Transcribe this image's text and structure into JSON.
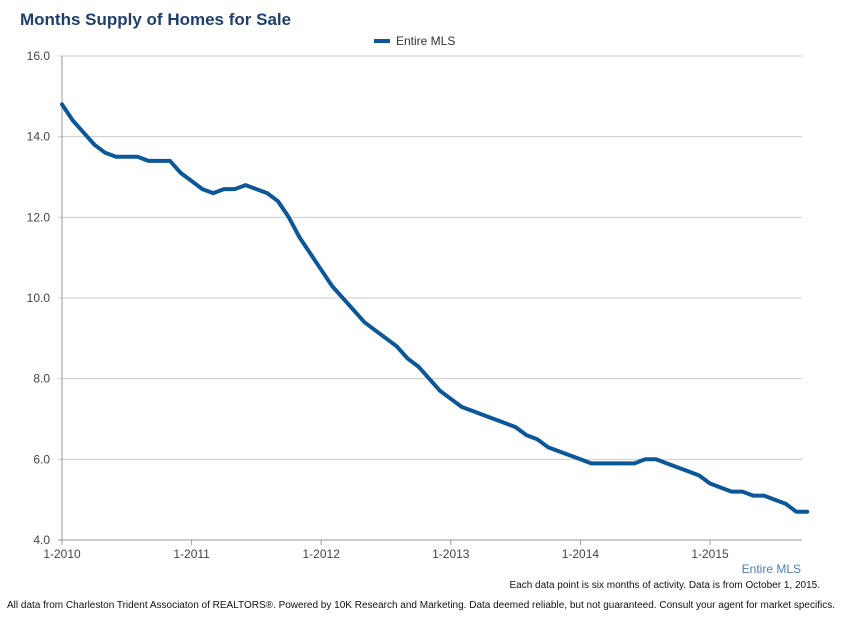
{
  "chart_data": {
    "type": "line",
    "title": "Months Supply of Homes for Sale",
    "xlabel": "",
    "ylabel": "",
    "ylim": [
      4.0,
      16.0
    ],
    "y_ticks": [
      "4.0",
      "6.0",
      "8.0",
      "10.0",
      "12.0",
      "14.0",
      "16.0"
    ],
    "x_ticks": [
      "1-2010",
      "1-2011",
      "1-2012",
      "1-2013",
      "1-2014",
      "1-2015"
    ],
    "xlim": [
      0,
      69
    ],
    "grid": true,
    "legend_position": "top-center",
    "series": [
      {
        "name": "Entire MLS",
        "color": "#0b5797",
        "x": [
          0,
          1,
          2,
          3,
          4,
          5,
          6,
          7,
          8,
          9,
          10,
          11,
          12,
          13,
          14,
          15,
          16,
          17,
          18,
          19,
          20,
          21,
          22,
          23,
          24,
          25,
          26,
          27,
          28,
          29,
          30,
          31,
          32,
          33,
          34,
          35,
          36,
          37,
          38,
          39,
          40,
          41,
          42,
          43,
          44,
          45,
          46,
          47,
          48,
          49,
          50,
          51,
          52,
          53,
          54,
          55,
          56,
          57,
          58,
          59,
          60,
          61,
          62,
          63,
          64,
          65,
          66,
          67,
          68,
          69
        ],
        "values": [
          14.8,
          14.4,
          14.1,
          13.8,
          13.6,
          13.5,
          13.5,
          13.5,
          13.4,
          13.4,
          13.4,
          13.1,
          12.9,
          12.7,
          12.6,
          12.7,
          12.7,
          12.8,
          12.7,
          12.6,
          12.4,
          12.0,
          11.5,
          11.1,
          10.7,
          10.3,
          10.0,
          9.7,
          9.4,
          9.2,
          9.0,
          8.8,
          8.5,
          8.3,
          8.0,
          7.7,
          7.5,
          7.3,
          7.2,
          7.1,
          7.0,
          6.9,
          6.8,
          6.6,
          6.5,
          6.3,
          6.2,
          6.1,
          6.0,
          5.9,
          5.9,
          5.9,
          5.9,
          5.9,
          6.0,
          6.0,
          5.9,
          5.8,
          5.7,
          5.6,
          5.4,
          5.3,
          5.2,
          5.2,
          5.1,
          5.1,
          5.0,
          4.9,
          4.7,
          4.7
        ]
      }
    ],
    "series_tag": "Entire MLS",
    "note": "Each data point is six months of activity. Data is from October 1, 2015.",
    "footer": "All data from Charleston Trident Associaton of REALTORS®. Powered by 10K Research and Marketing. Data deemed reliable, but not guaranteed. Consult your agent for market specifics."
  }
}
